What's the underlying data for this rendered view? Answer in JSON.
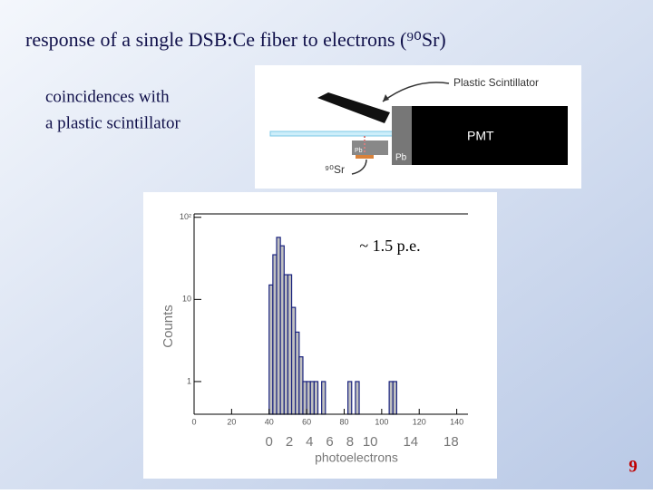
{
  "title": "response of a single DSB:Ce fiber to electrons (⁹⁰Sr)",
  "bullet": [
    "coincidences with",
    "a plastic scintillator"
  ],
  "diagram": {
    "scintillator_label": "Plastic Scintillator",
    "pmt_label": "PMT",
    "pb_left": "Pb",
    "pb_right": "Pb",
    "source_label": "⁹⁰Sr"
  },
  "page_number": "9",
  "chart_data": {
    "type": "histogram",
    "bins": [
      40,
      42,
      44,
      46,
      48,
      50,
      52,
      54,
      56,
      58,
      60,
      62,
      64,
      66,
      68,
      70,
      72,
      74,
      76,
      78,
      80,
      82,
      84,
      86,
      88,
      90,
      92,
      94,
      96,
      98,
      100,
      102,
      104,
      106,
      108
    ],
    "values": [
      15,
      35,
      57,
      45,
      20,
      20,
      8,
      4,
      2,
      1,
      1,
      1,
      1,
      0,
      1,
      0,
      0,
      0,
      0,
      0,
      0,
      1,
      0,
      1,
      0,
      0,
      0,
      0,
      0,
      0,
      0,
      0,
      1,
      1
    ],
    "color": "#c0c0c0",
    "edge_color": "#1a237e",
    "xlim": [
      0,
      146
    ],
    "xticks": [
      0,
      20,
      40,
      60,
      80,
      100,
      120,
      140
    ],
    "ylim": [
      0.4,
      110
    ],
    "log_y": true,
    "yticks": [
      1,
      10,
      {
        "value": 100,
        "label": "10²"
      }
    ],
    "ylabel": "Counts",
    "x2label": "photoelectrons",
    "x2lim": [
      -7.42,
      19.67
    ],
    "x2ticks": [
      0,
      2,
      4,
      6,
      8,
      10,
      14,
      18
    ],
    "annotation": "~ 1.5 p.e."
  }
}
